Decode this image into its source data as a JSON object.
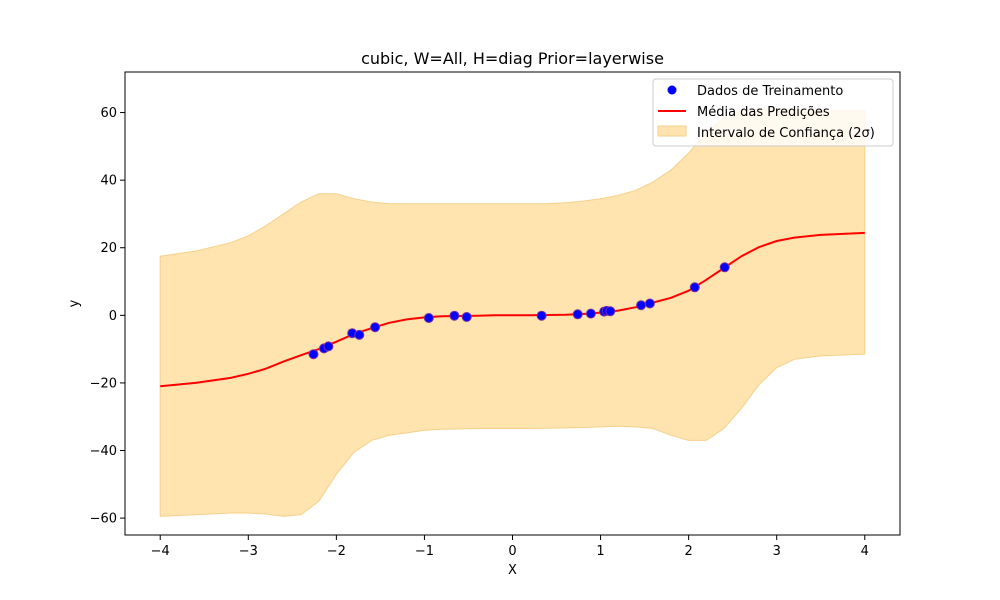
{
  "chart_data": {
    "type": "line",
    "title": "cubic, W=All, H=diag Prior=layerwise",
    "xlabel": "X",
    "ylabel": "y",
    "xlim": [
      -4.4,
      4.4
    ],
    "ylim": [
      -65,
      72
    ],
    "xticks": [
      -4,
      -3,
      -2,
      -1,
      0,
      1,
      2,
      3,
      4
    ],
    "xtick_labels": [
      "−4",
      "−3",
      "−2",
      "−1",
      "0",
      "1",
      "2",
      "3",
      "4"
    ],
    "yticks": [
      -60,
      -40,
      -20,
      0,
      20,
      40,
      60
    ],
    "ytick_labels": [
      "−60",
      "−40",
      "−20",
      "0",
      "20",
      "40",
      "60"
    ],
    "grid": false,
    "legend_position": "top-right",
    "colors": {
      "points": "#0000ff",
      "points_edge": "#7a2fa0",
      "mean": "#ff0000",
      "band_fill": "#ffe4b0",
      "band_edge": "#f5d08a"
    },
    "series": [
      {
        "name": "Dados de Treinamento",
        "kind": "scatter",
        "x": [
          -2.26,
          -2.14,
          -2.09,
          -1.82,
          -1.74,
          -1.56,
          -0.95,
          -0.66,
          -0.52,
          0.33,
          0.74,
          0.89,
          1.04,
          1.07,
          1.11,
          1.46,
          1.56,
          2.07,
          2.41
        ],
        "y": [
          -11.5,
          -9.8,
          -9.2,
          -5.3,
          -5.8,
          -3.5,
          -0.8,
          -0.1,
          -0.5,
          -0.1,
          0.3,
          0.5,
          1.1,
          1.3,
          1.2,
          3.0,
          3.5,
          8.3,
          14.2
        ]
      },
      {
        "name": "Média das Predições",
        "kind": "line",
        "x": [
          -4.0,
          -3.6,
          -3.2,
          -3.0,
          -2.8,
          -2.6,
          -2.4,
          -2.2,
          -2.0,
          -1.8,
          -1.6,
          -1.4,
          -1.2,
          -1.0,
          -0.8,
          -0.6,
          -0.4,
          -0.2,
          0.0,
          0.2,
          0.4,
          0.6,
          0.8,
          1.0,
          1.2,
          1.4,
          1.6,
          1.8,
          2.0,
          2.2,
          2.4,
          2.6,
          2.8,
          3.0,
          3.2,
          3.5,
          4.0
        ],
        "y": [
          -21.0,
          -20.0,
          -18.5,
          -17.3,
          -15.8,
          -13.7,
          -11.8,
          -10.0,
          -7.8,
          -5.5,
          -3.8,
          -2.2,
          -1.2,
          -0.6,
          -0.3,
          -0.2,
          -0.1,
          0.0,
          0.0,
          0.05,
          0.1,
          0.2,
          0.4,
          0.8,
          1.4,
          2.4,
          3.8,
          5.2,
          7.3,
          10.5,
          14.0,
          17.5,
          20.2,
          22.0,
          23.0,
          23.8,
          24.4
        ]
      },
      {
        "name": "Intervalo de Confiança (2σ)",
        "kind": "band",
        "x": [
          -4.0,
          -3.6,
          -3.2,
          -3.0,
          -2.8,
          -2.6,
          -2.4,
          -2.2,
          -2.0,
          -1.8,
          -1.6,
          -1.4,
          -1.2,
          -1.0,
          -0.8,
          -0.6,
          -0.4,
          -0.2,
          0.0,
          0.2,
          0.4,
          0.6,
          0.8,
          1.0,
          1.2,
          1.4,
          1.6,
          1.8,
          2.0,
          2.2,
          2.4,
          2.6,
          2.8,
          3.0,
          3.2,
          3.5,
          4.0
        ],
        "upper": [
          17.5,
          19.0,
          21.5,
          23.5,
          26.5,
          30.0,
          33.5,
          36.0,
          36.0,
          34.5,
          33.5,
          33.0,
          33.0,
          33.0,
          33.0,
          33.0,
          33.0,
          33.0,
          33.0,
          33.0,
          33.0,
          33.3,
          33.8,
          34.5,
          35.5,
          37.0,
          39.5,
          43.0,
          48.0,
          54.0,
          58.5,
          60.5,
          61.0,
          61.0,
          61.0,
          60.5,
          60.5
        ],
        "lower": [
          -59.5,
          -59.0,
          -58.5,
          -58.5,
          -58.8,
          -59.5,
          -59.0,
          -55.0,
          -47.0,
          -40.5,
          -37.0,
          -35.5,
          -34.8,
          -34.0,
          -33.7,
          -33.6,
          -33.5,
          -33.5,
          -33.5,
          -33.5,
          -33.4,
          -33.3,
          -33.2,
          -33.0,
          -32.8,
          -33.0,
          -33.5,
          -35.5,
          -37.0,
          -37.0,
          -33.5,
          -27.5,
          -20.5,
          -15.5,
          -13.0,
          -12.0,
          -11.5
        ]
      }
    ]
  }
}
